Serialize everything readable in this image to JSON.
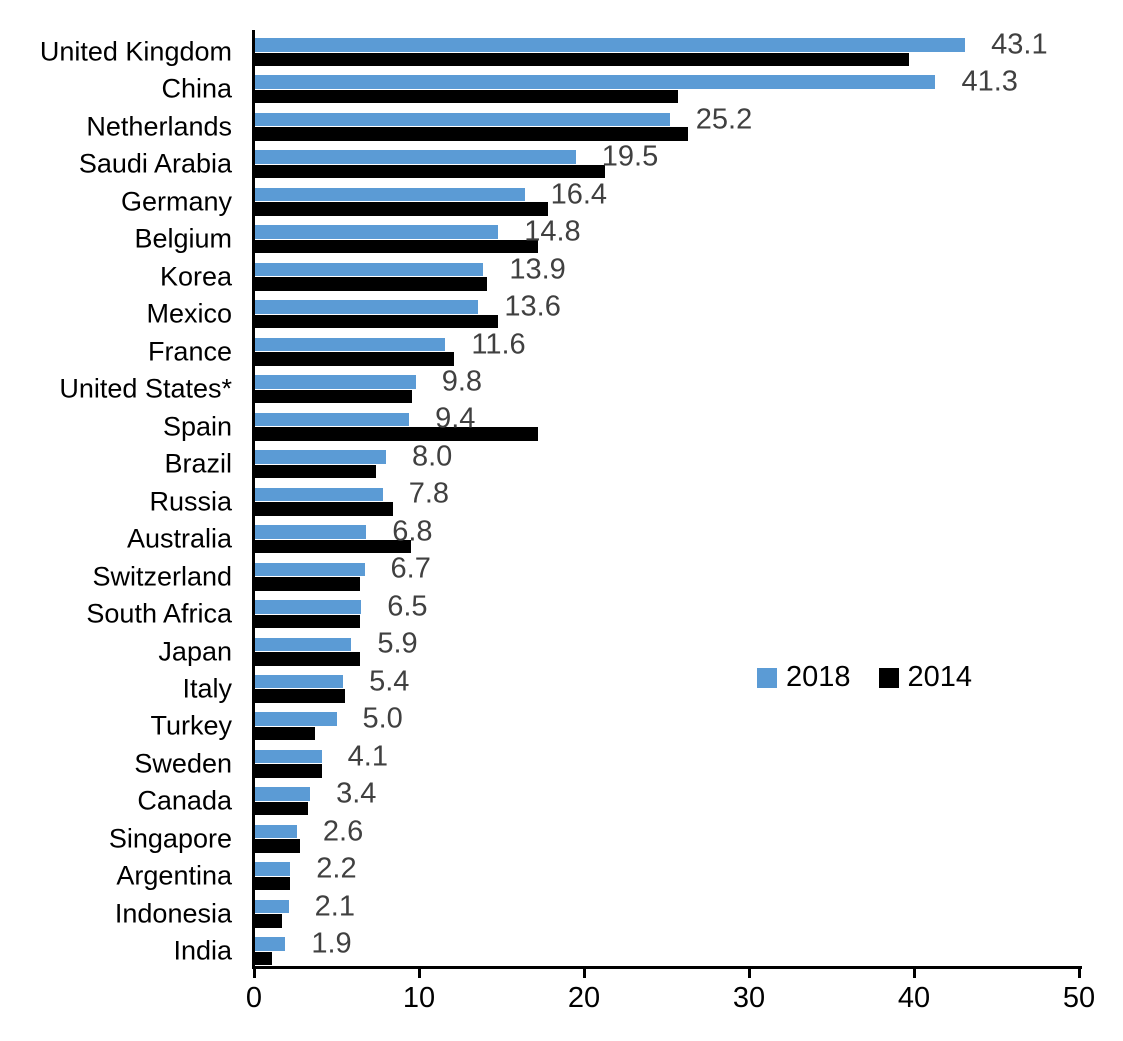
{
  "chart_data": {
    "type": "bar",
    "orientation": "horizontal",
    "title": "",
    "xlabel": "",
    "ylabel": "",
    "xlim": [
      0,
      50
    ],
    "x_ticks": [
      0,
      10,
      20,
      30,
      40,
      50
    ],
    "grid": false,
    "legend_position": "middle-right",
    "categories": [
      "United Kingdom",
      "China",
      "Netherlands",
      "Saudi Arabia",
      "Germany",
      "Belgium",
      "Korea",
      "Mexico",
      "France",
      "United States*",
      "Spain",
      "Brazil",
      "Russia",
      "Australia",
      "Switzerland",
      "South Africa",
      "Japan",
      "Italy",
      "Turkey",
      "Sweden",
      "Canada",
      "Singapore",
      "Argentina",
      "Indonesia",
      "India"
    ],
    "series": [
      {
        "name": "2018",
        "color": "#5B9BD5",
        "values": [
          43.1,
          41.3,
          25.2,
          19.5,
          16.4,
          14.8,
          13.9,
          13.6,
          11.6,
          9.8,
          9.4,
          8.0,
          7.8,
          6.8,
          6.7,
          6.5,
          5.9,
          5.4,
          5.0,
          4.1,
          3.4,
          2.6,
          2.2,
          2.1,
          1.9
        ]
      },
      {
        "name": "2014",
        "color": "#000000",
        "values": [
          39.7,
          25.7,
          26.3,
          21.3,
          17.8,
          17.2,
          14.1,
          14.8,
          12.1,
          9.6,
          17.2,
          7.4,
          8.4,
          9.5,
          6.4,
          6.4,
          6.4,
          5.5,
          3.7,
          4.1,
          3.3,
          2.8,
          2.2,
          1.7,
          1.1
        ]
      }
    ],
    "data_labels": {
      "series": "2018",
      "values": [
        "43.1",
        "41.3",
        "25.2",
        "19.5",
        "16.4",
        "14.8",
        "13.9",
        "13.6",
        "11.6",
        "9.8",
        "9.4",
        "8.0",
        "7.8",
        "6.8",
        "6.7",
        "6.5",
        "5.9",
        "5.4",
        "5.0",
        "4.1",
        "3.4",
        "2.6",
        "2.2",
        "2.1",
        "1.9"
      ]
    }
  },
  "colors": {
    "series_2018": "#5B9BD5",
    "series_2014": "#000000",
    "value_label": "#404040",
    "axis": "#000000",
    "background": "#ffffff"
  }
}
